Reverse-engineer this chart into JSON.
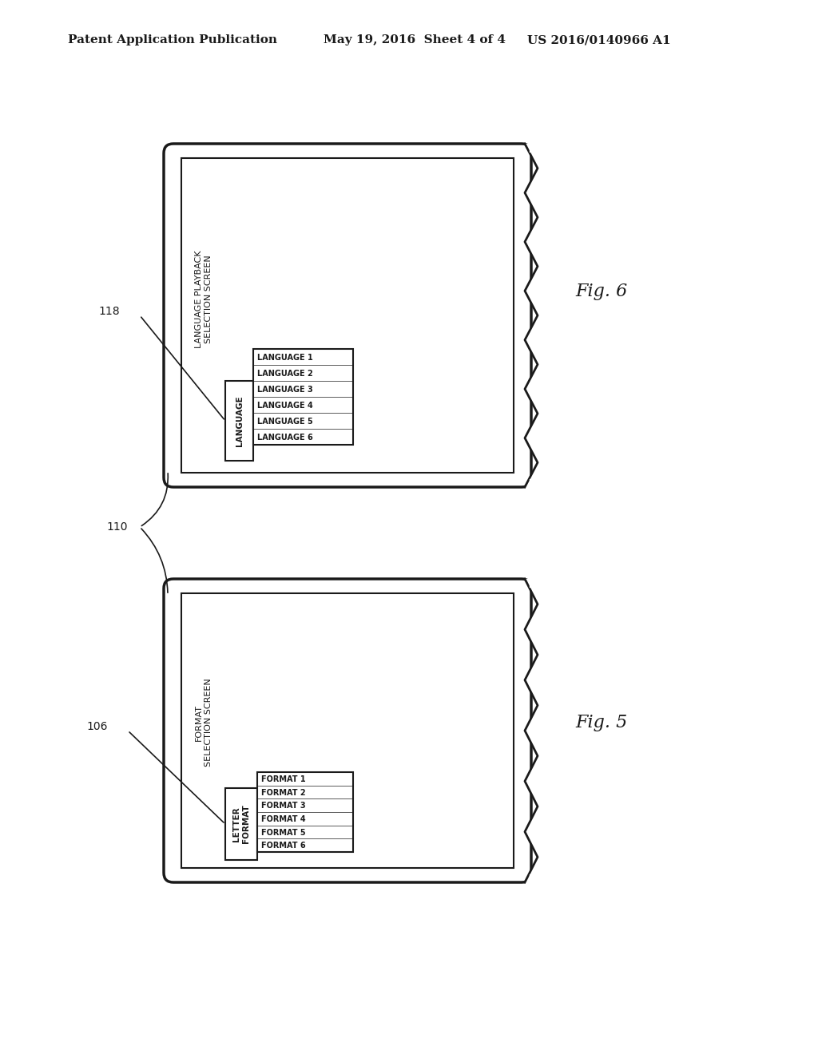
{
  "background_color": "#ffffff",
  "header_left": "Patent Application Publication",
  "header_mid": "May 19, 2016  Sheet 4 of 4",
  "header_right": "US 2016/0140966 A1",
  "fig6_label": "Fig. 6",
  "fig5_label": "Fig. 5",
  "fig6_screen_title": "LANGUAGE PLAYBACK\nSELECTION SCREEN",
  "fig5_screen_title": "FORMAT\nSELECTION SCREEN",
  "fig6_dropdown_label": "LANGUAGE",
  "fig6_items": [
    "LANGUAGE 1",
    "LANGUAGE 2",
    "LANGUAGE 3",
    "LANGUAGE 4",
    "LANGUAGE 5",
    "LANGUAGE 6"
  ],
  "fig5_dropdown_label": "LETTER\nFORMAT",
  "fig5_items": [
    "FORMAT 1",
    "FORMAT 2",
    "FORMAT 3",
    "FORMAT 4",
    "FORMAT 5",
    "FORMAT 6"
  ],
  "ref_118": "118",
  "ref_110": "110",
  "ref_106": "106",
  "line_color": "#1a1a1a",
  "text_color": "#1a1a1a"
}
